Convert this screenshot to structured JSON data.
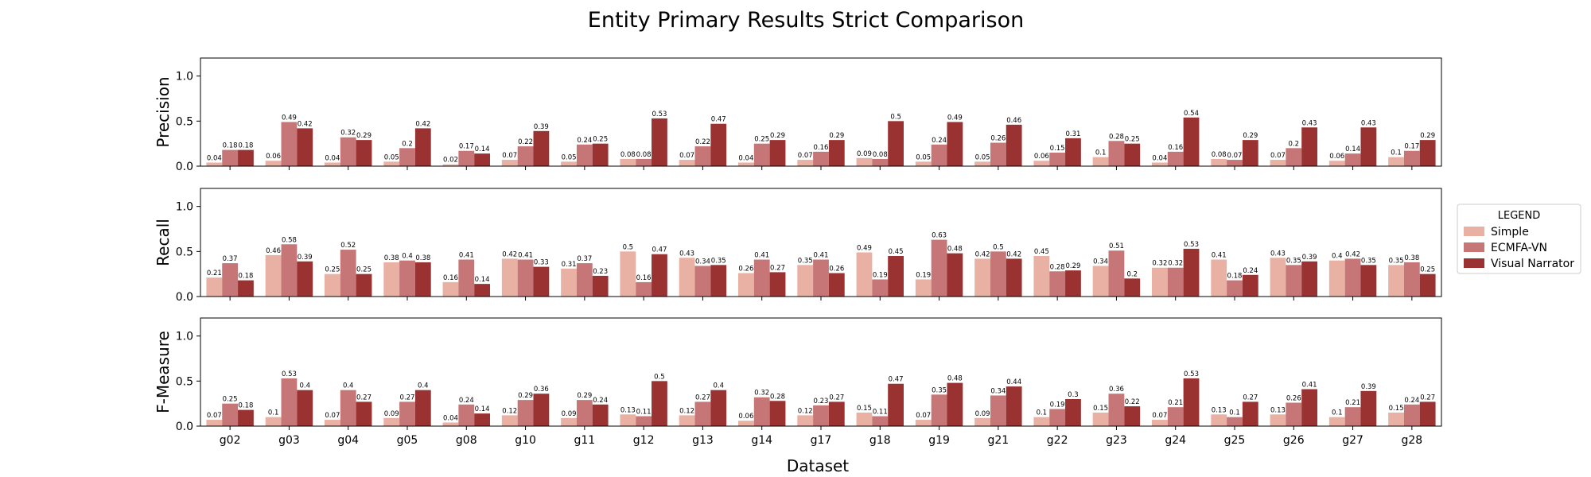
{
  "chart_data": {
    "type": "bar",
    "title": "Entity Primary Results Strict Comparison",
    "xlabel": "Dataset",
    "categories": [
      "g02",
      "g03",
      "g04",
      "g05",
      "g08",
      "g10",
      "g11",
      "g12",
      "g13",
      "g14",
      "g17",
      "g18",
      "g19",
      "g21",
      "g22",
      "g23",
      "g24",
      "g25",
      "g26",
      "g27",
      "g28"
    ],
    "ylim": [
      0,
      1.2
    ],
    "yticks": [
      "0.0",
      "0.5",
      "1.0"
    ],
    "legend": {
      "title": "LEGEND",
      "position": "right",
      "items": [
        "Simple",
        "ECMFA-VN",
        "Visual Narrator"
      ]
    },
    "colors": {
      "Simple": "#e9b1a3",
      "ECMFA-VN": "#c67677",
      "Visual Narrator": "#9b3232"
    },
    "panels": [
      {
        "ylabel": "Precision",
        "series": [
          {
            "name": "Simple",
            "values": [
              0.04,
              0.06,
              0.04,
              0.05,
              0.02,
              0.07,
              0.05,
              0.08,
              0.07,
              0.04,
              0.07,
              0.09,
              0.05,
              0.05,
              0.06,
              0.1,
              0.04,
              0.08,
              0.07,
              0.06,
              0.1
            ]
          },
          {
            "name": "ECMFA-VN",
            "values": [
              0.18,
              0.49,
              0.32,
              0.2,
              0.17,
              0.22,
              0.24,
              0.08,
              0.22,
              0.25,
              0.16,
              0.08,
              0.24,
              0.26,
              0.15,
              0.28,
              0.16,
              0.07,
              0.2,
              0.14,
              0.17
            ]
          },
          {
            "name": "Visual Narrator",
            "values": [
              0.18,
              0.42,
              0.29,
              0.42,
              0.14,
              0.39,
              0.25,
              0.53,
              0.47,
              0.29,
              0.29,
              0.5,
              0.49,
              0.46,
              0.31,
              0.25,
              0.54,
              0.29,
              0.43,
              0.43,
              0.29
            ]
          }
        ]
      },
      {
        "ylabel": "Recall",
        "series": [
          {
            "name": "Simple",
            "values": [
              0.21,
              0.46,
              0.25,
              0.38,
              0.16,
              0.42,
              0.31,
              0.5,
              0.43,
              0.26,
              0.35,
              0.49,
              0.19,
              0.42,
              0.45,
              0.34,
              0.32,
              0.41,
              0.43,
              0.4,
              0.35
            ]
          },
          {
            "name": "ECMFA-VN",
            "values": [
              0.37,
              0.58,
              0.52,
              0.4,
              0.41,
              0.41,
              0.37,
              0.16,
              0.34,
              0.41,
              0.41,
              0.19,
              0.63,
              0.5,
              0.28,
              0.51,
              0.32,
              0.18,
              0.35,
              0.42,
              0.38
            ]
          },
          {
            "name": "Visual Narrator",
            "values": [
              0.18,
              0.39,
              0.25,
              0.38,
              0.14,
              0.33,
              0.23,
              0.47,
              0.35,
              0.27,
              0.26,
              0.45,
              0.48,
              0.42,
              0.29,
              0.2,
              0.53,
              0.24,
              0.39,
              0.35,
              0.25
            ]
          }
        ]
      },
      {
        "ylabel": "F-Measure",
        "series": [
          {
            "name": "Simple",
            "values": [
              0.07,
              0.1,
              0.07,
              0.09,
              0.04,
              0.12,
              0.09,
              0.13,
              0.12,
              0.06,
              0.12,
              0.15,
              0.07,
              0.09,
              0.1,
              0.15,
              0.07,
              0.13,
              0.13,
              0.1,
              0.15
            ]
          },
          {
            "name": "ECMFA-VN",
            "values": [
              0.25,
              0.53,
              0.4,
              0.27,
              0.24,
              0.29,
              0.29,
              0.11,
              0.27,
              0.32,
              0.23,
              0.11,
              0.35,
              0.34,
              0.19,
              0.36,
              0.21,
              0.1,
              0.26,
              0.21,
              0.24
            ]
          },
          {
            "name": "Visual Narrator",
            "values": [
              0.18,
              0.4,
              0.27,
              0.4,
              0.14,
              0.36,
              0.24,
              0.5,
              0.4,
              0.28,
              0.27,
              0.47,
              0.48,
              0.44,
              0.3,
              0.22,
              0.53,
              0.27,
              0.41,
              0.39,
              0.27
            ]
          }
        ]
      }
    ]
  }
}
